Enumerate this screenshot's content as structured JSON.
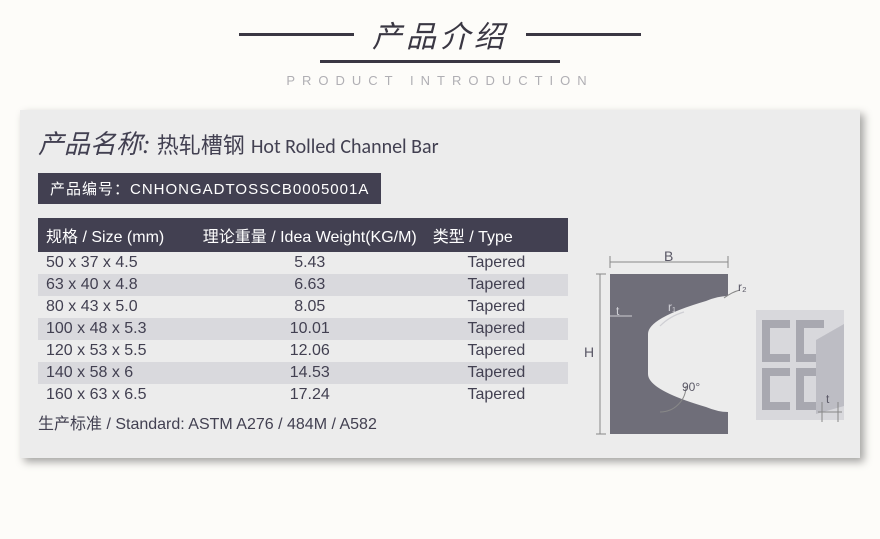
{
  "header": {
    "title_cn": "产品介绍",
    "title_en": "PRODUCT INTRODUCTION"
  },
  "product": {
    "name_label": "产品名称:",
    "name_cn": "热轧槽钢",
    "name_en": "Hot Rolled Channel Bar",
    "code_label": "产品编号：",
    "code": "CNHONGADTOSSCB0005001A"
  },
  "table": {
    "columns": [
      "规格 / Size (mm)",
      "理论重量 / Idea Weight(KG/M)",
      "类型 / Type"
    ],
    "rows": [
      [
        "50 x 37 x 4.5",
        "5.43",
        "Tapered"
      ],
      [
        "63 x 40 x 4.8",
        "6.63",
        "Tapered"
      ],
      [
        "80 x 43 x 5.0",
        "8.05",
        "Tapered"
      ],
      [
        "100 x 48 x 5.3",
        "10.01",
        "Tapered"
      ],
      [
        "120 x 53 x 5.5",
        "12.06",
        "Tapered"
      ],
      [
        "140 x 58 x 6",
        "14.53",
        "Tapered"
      ],
      [
        "160 x 63 x 6.5",
        "17.24",
        "Tapered"
      ]
    ],
    "header_bg": "#424051",
    "row_odd_bg": "#ececec",
    "row_even_bg": "#d9d9dd"
  },
  "diagram": {
    "labels": {
      "B": "B",
      "H": "H",
      "r1": "r₁",
      "r2": "r₂",
      "t": "t",
      "angle": "90°"
    },
    "fill": "#6f6e79"
  },
  "standard": {
    "label": "生产标准 / Standard:",
    "value": "ASTM A276 / 484M / A582"
  }
}
